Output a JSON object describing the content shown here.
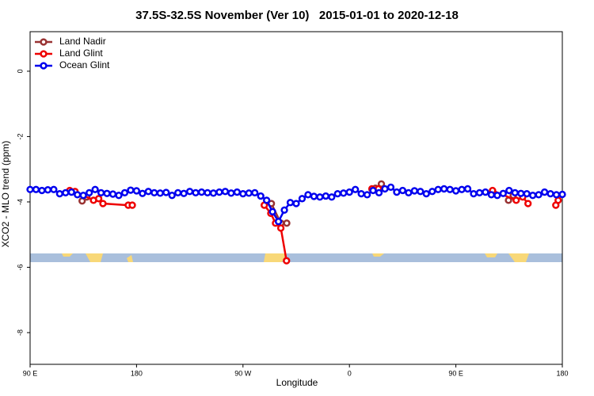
{
  "chart_data": {
    "type": "line",
    "title": "37.5S-32.5S November (Ver 10)   2015-01-01 to 2020-12-18",
    "x_label": "Longitude",
    "y_label": "XCO2 - MLO trend (ppm)",
    "xlim": [
      90,
      540
    ],
    "ylim": [
      -8.97,
      1.21
    ],
    "xticks": [
      {
        "value": 90,
        "label": "90 E"
      },
      {
        "value": 180,
        "label": "180"
      },
      {
        "value": 270,
        "label": "90 W"
      },
      {
        "value": 360,
        "label": "0"
      },
      {
        "value": 450,
        "label": "90 E"
      },
      {
        "value": 540,
        "label": "180"
      }
    ],
    "yticks": [
      0,
      -2,
      -4,
      -6,
      -8
    ],
    "legend": "top-left",
    "series": [
      {
        "name": "Land Nadir",
        "color": "#993333",
        "x": [
          134,
          138,
          200,
          294,
          302,
          307,
          340,
          382,
          387,
          440,
          494.5,
          498.5
        ],
        "values": [
          -3.97,
          -3.85,
          null,
          -4.05,
          -4.65,
          -4.65,
          null,
          -3.58,
          -3.45,
          null,
          -3.95,
          -3.8
        ]
      },
      {
        "name": "Land Glint",
        "color": "#ee0000",
        "x": [
          123.5,
          128,
          143.6,
          148,
          151.6,
          173,
          176.4,
          230,
          288,
          293.5,
          297.5,
          302,
          306.8,
          340,
          379,
          384.5,
          440,
          481,
          501,
          506.5,
          511,
          520,
          534.5,
          536.5
        ],
        "values": [
          -3.65,
          -3.68,
          -3.95,
          -3.9,
          -4.05,
          -4.1,
          -4.1,
          null,
          -4.1,
          -4.35,
          -4.65,
          -4.8,
          -5.8,
          null,
          -3.6,
          -3.6,
          null,
          -3.65,
          -3.95,
          -3.85,
          -4.05,
          null,
          -4.1,
          -3.95
        ]
      },
      {
        "name": "Ocean Glint",
        "color": "#0000ee",
        "x": [
          90,
          95,
          100,
          105,
          110,
          115,
          120,
          125,
          130,
          135,
          140,
          145,
          150,
          155,
          160,
          165,
          170,
          175,
          180,
          185,
          190,
          195,
          200,
          205,
          210,
          215,
          220,
          225,
          230,
          235,
          240,
          245,
          250,
          255,
          260,
          265,
          270,
          275,
          280,
          285,
          290,
          295,
          300,
          305,
          310,
          315,
          320,
          325,
          330,
          335,
          340,
          345,
          350,
          355,
          360,
          365,
          370,
          375,
          380,
          385,
          390,
          395,
          400,
          405,
          410,
          415,
          420,
          425,
          430,
          435,
          440,
          445,
          450,
          455,
          460,
          465,
          470,
          475,
          480,
          485,
          490,
          495,
          500,
          505,
          510,
          515,
          520,
          525,
          530,
          535,
          540
        ],
        "values": [
          -3.62,
          -3.62,
          -3.65,
          -3.63,
          -3.62,
          -3.75,
          -3.72,
          -3.7,
          -3.78,
          -3.8,
          -3.72,
          -3.62,
          -3.72,
          -3.74,
          -3.76,
          -3.8,
          -3.72,
          -3.64,
          -3.66,
          -3.74,
          -3.68,
          -3.72,
          -3.73,
          -3.71,
          -3.8,
          -3.72,
          -3.74,
          -3.68,
          -3.72,
          -3.7,
          -3.72,
          -3.73,
          -3.7,
          -3.68,
          -3.73,
          -3.7,
          -3.75,
          -3.73,
          -3.72,
          -3.82,
          -3.95,
          -4.3,
          -4.6,
          -4.25,
          -4.02,
          -4.05,
          -3.9,
          -3.78,
          -3.83,
          -3.85,
          -3.82,
          -3.85,
          -3.75,
          -3.73,
          -3.7,
          -3.62,
          -3.75,
          -3.78,
          -3.65,
          -3.72,
          -3.6,
          -3.55,
          -3.7,
          -3.65,
          -3.72,
          -3.66,
          -3.68,
          -3.75,
          -3.68,
          -3.62,
          -3.6,
          -3.62,
          -3.66,
          -3.62,
          -3.6,
          -3.75,
          -3.72,
          -3.7,
          -3.78,
          -3.8,
          -3.74,
          -3.65,
          -3.72,
          -3.74,
          -3.75,
          -3.8,
          -3.78,
          -3.7,
          -3.75,
          -3.78,
          -3.77
        ]
      }
    ]
  }
}
